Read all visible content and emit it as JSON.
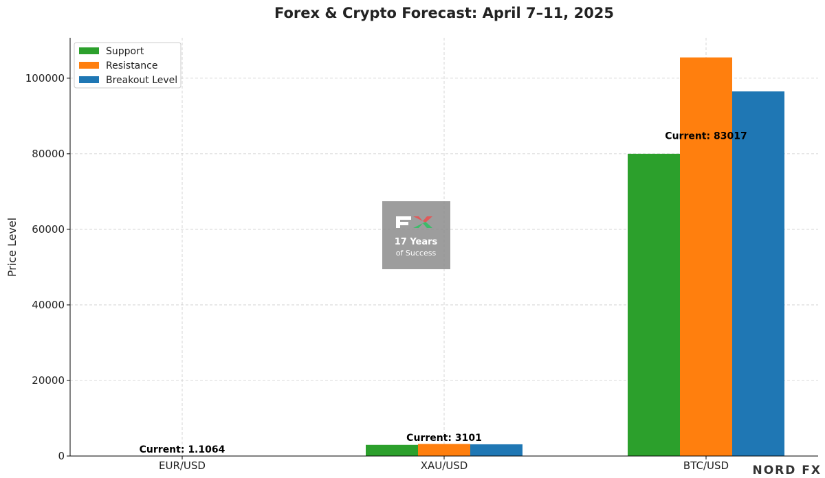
{
  "chart_data": {
    "type": "bar",
    "title": "Forex & Crypto Forecast: April 7–11, 2025",
    "y_label": "Price Level",
    "categories": [
      "EUR/USD",
      "XAU/USD",
      "BTC/USD"
    ],
    "series": [
      {
        "name": "Support",
        "color": "#2ca02c",
        "values": [
          1.08,
          2950,
          80000
        ]
      },
      {
        "name": "Resistance",
        "color": "#ff7f0e",
        "values": [
          1.12,
          3200,
          105500
        ]
      },
      {
        "name": "Breakout Level",
        "color": "#1f77b4",
        "values": [
          1.11,
          3100,
          96500
        ]
      }
    ],
    "annotations": [
      {
        "text": "Current: 1.1064",
        "value": 1.1064
      },
      {
        "text": "Current: 3101",
        "value": 3101
      },
      {
        "text": "Current: 83017",
        "value": 83017
      }
    ],
    "ylim": [
      0,
      110700
    ],
    "yticks": [
      0,
      20000,
      40000,
      60000,
      80000,
      100000
    ],
    "grid": true,
    "legend": "upper left",
    "watermark": {
      "line1": "17 Years",
      "line2": "of Success"
    },
    "brand": "NORD FX"
  }
}
